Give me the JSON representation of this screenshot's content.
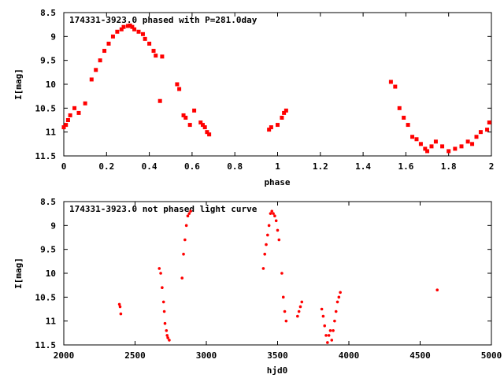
{
  "chart_data": [
    {
      "type": "scatter",
      "title": "174331-3923.0 phased with P=281.0day",
      "xlabel": "phase",
      "ylabel": "I[mag]",
      "xlim": [
        0,
        2
      ],
      "ylim": [
        11.5,
        8.5
      ],
      "y_inverted": true,
      "xticks": [
        "0",
        "0.2",
        "0.4",
        "0.6",
        "0.8",
        "1",
        "1.2",
        "1.4",
        "1.6",
        "1.8",
        "2"
      ],
      "yticks": [
        "8.5",
        "9",
        "9.5",
        "10",
        "10.5",
        "11",
        "11.5"
      ],
      "grid": false,
      "color": "#ff0000",
      "series": [
        {
          "x": [
            0.0,
            0.01,
            0.02,
            0.03,
            0.05,
            0.07,
            0.1,
            0.13,
            0.15,
            0.17,
            0.19,
            0.21,
            0.23,
            0.25,
            0.27,
            0.28,
            0.3,
            0.31,
            0.32,
            0.33,
            0.35,
            0.37,
            0.38,
            0.4,
            0.42,
            0.43,
            0.45,
            0.46,
            0.53,
            0.54,
            0.56,
            0.57,
            0.59,
            0.61,
            0.64,
            0.65,
            0.66,
            0.67,
            0.68,
            0.96,
            0.97,
            1.0,
            1.02,
            1.03,
            1.04,
            1.53,
            1.55,
            1.57,
            1.59,
            1.61,
            1.63,
            1.65,
            1.67,
            1.69,
            1.7,
            1.72,
            1.74,
            1.77,
            1.8,
            1.83,
            1.86,
            1.89,
            1.91,
            1.93,
            1.95,
            1.98,
            1.99
          ],
          "y": [
            10.9,
            10.85,
            10.75,
            10.65,
            10.5,
            10.6,
            10.4,
            9.9,
            9.7,
            9.5,
            9.3,
            9.15,
            9.0,
            8.9,
            8.85,
            8.8,
            8.78,
            8.77,
            8.8,
            8.85,
            8.9,
            8.95,
            9.05,
            9.15,
            9.3,
            9.4,
            10.35,
            9.42,
            10.0,
            10.1,
            10.65,
            10.7,
            10.85,
            10.55,
            10.8,
            10.85,
            10.9,
            11.0,
            11.05,
            10.95,
            10.9,
            10.85,
            10.7,
            10.6,
            10.55,
            9.95,
            10.05,
            10.5,
            10.7,
            10.85,
            11.1,
            11.15,
            11.25,
            11.35,
            11.4,
            11.3,
            11.2,
            11.3,
            11.4,
            11.35,
            11.3,
            11.2,
            11.25,
            11.1,
            11.0,
            10.95,
            10.8
          ]
        }
      ]
    },
    {
      "type": "scatter",
      "title": "174331-3923.0 not phased light curve",
      "xlabel": "hjd0",
      "ylabel": "I[mag]",
      "xlim": [
        2000,
        5000
      ],
      "ylim": [
        11.5,
        8.5
      ],
      "y_inverted": true,
      "xticks": [
        "2000",
        "2500",
        "3000",
        "3500",
        "4000",
        "4500",
        "5000"
      ],
      "yticks": [
        "8.5",
        "9",
        "9.5",
        "10",
        "10.5",
        "11",
        "11.5"
      ],
      "grid": false,
      "color": "#ff0000",
      "series": [
        {
          "x": [
            2390,
            2395,
            2400,
            2670,
            2680,
            2690,
            2700,
            2705,
            2710,
            2720,
            2725,
            2730,
            2740,
            2830,
            2840,
            2850,
            2860,
            2870,
            2880,
            2890,
            3400,
            3410,
            3420,
            3430,
            3440,
            3450,
            3460,
            3470,
            3480,
            3490,
            3500,
            3510,
            3530,
            3540,
            3550,
            3560,
            3640,
            3650,
            3660,
            3670,
            3810,
            3820,
            3830,
            3840,
            3850,
            3860,
            3870,
            3880,
            3890,
            3900,
            3910,
            3920,
            3930,
            3940,
            4620
          ],
          "y": [
            10.65,
            10.7,
            10.85,
            9.9,
            10.0,
            10.3,
            10.6,
            10.8,
            11.05,
            11.2,
            11.3,
            11.35,
            11.4,
            10.1,
            9.6,
            9.3,
            9.0,
            8.8,
            8.75,
            8.7,
            9.9,
            9.6,
            9.4,
            9.2,
            9.0,
            8.75,
            8.7,
            8.75,
            8.8,
            8.9,
            9.1,
            9.3,
            10.0,
            10.5,
            10.8,
            11.0,
            10.9,
            10.8,
            10.7,
            10.6,
            10.75,
            10.9,
            11.1,
            11.3,
            11.45,
            11.3,
            11.2,
            11.4,
            11.2,
            11.0,
            10.8,
            10.6,
            10.5,
            10.4,
            10.35
          ]
        }
      ]
    }
  ]
}
